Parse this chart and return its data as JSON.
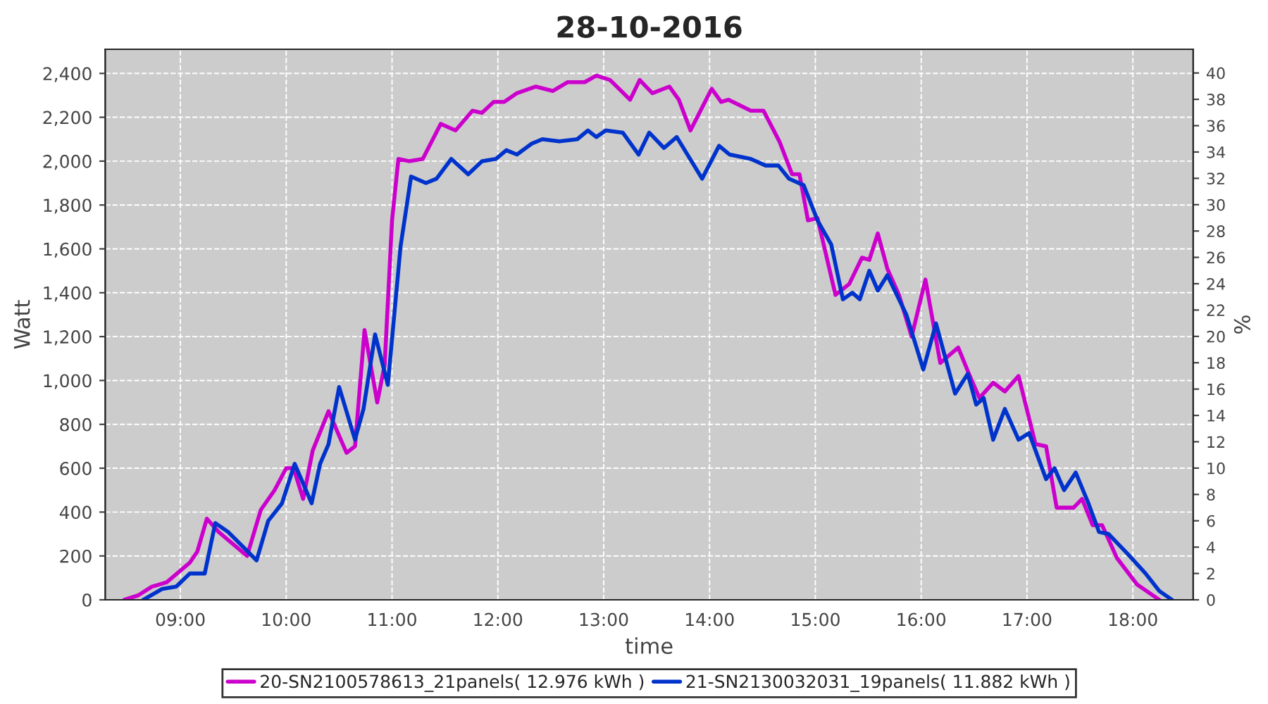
{
  "chart_data": {
    "type": "line",
    "title": "28-10-2016",
    "xlabel": "time",
    "ylabel": "Watt",
    "y2label": "%",
    "xlim": [
      8.29,
      18.57
    ],
    "xticks": [
      {
        "value": 9,
        "label": "09:00"
      },
      {
        "value": 10,
        "label": "10:00"
      },
      {
        "value": 11,
        "label": "11:00"
      },
      {
        "value": 12,
        "label": "12:00"
      },
      {
        "value": 13,
        "label": "13:00"
      },
      {
        "value": 14,
        "label": "14:00"
      },
      {
        "value": 15,
        "label": "15:00"
      },
      {
        "value": 16,
        "label": "16:00"
      },
      {
        "value": 17,
        "label": "17:00"
      },
      {
        "value": 18,
        "label": "18:00"
      }
    ],
    "ylim": [
      0,
      2510
    ],
    "yticks": [
      0,
      200,
      400,
      600,
      800,
      {
        "value": 1000,
        "label": "1,000"
      },
      {
        "value": 1200,
        "label": "1,200"
      },
      {
        "value": 1400,
        "label": "1,400"
      },
      {
        "value": 1600,
        "label": "1,600"
      },
      {
        "value": 1800,
        "label": "1,800"
      },
      {
        "value": 2000,
        "label": "2,000"
      },
      {
        "value": 2200,
        "label": "2,200"
      },
      {
        "value": 2400,
        "label": "2,400"
      }
    ],
    "y2lim": [
      0,
      41.8
    ],
    "y2ticks": [
      0,
      2,
      4,
      6,
      8,
      10,
      12,
      14,
      16,
      18,
      20,
      22,
      24,
      26,
      28,
      30,
      32,
      34,
      36,
      38,
      40
    ],
    "grid": true,
    "legend": "bottom",
    "line_style": "solid",
    "series": [
      {
        "name": "20-SN2100578613_21panels( 12.976 kWh )",
        "color": "#cc00cc",
        "x": [
          8.47,
          8.6,
          8.73,
          8.87,
          9.09,
          9.16,
          9.25,
          9.36,
          9.63,
          9.76,
          9.89,
          10.0,
          10.07,
          10.16,
          10.25,
          10.4,
          10.57,
          10.65,
          10.74,
          10.86,
          10.93,
          11.0,
          11.06,
          11.16,
          11.29,
          11.46,
          11.6,
          11.76,
          11.85,
          11.96,
          12.06,
          12.18,
          12.36,
          12.52,
          12.66,
          12.82,
          12.93,
          13.06,
          13.25,
          13.34,
          13.46,
          13.62,
          13.71,
          13.82,
          14.02,
          14.11,
          14.18,
          14.39,
          14.51,
          14.66,
          14.78,
          14.85,
          14.93,
          15.02,
          15.19,
          15.32,
          15.44,
          15.51,
          15.59,
          15.68,
          15.79,
          15.91,
          16.04,
          16.18,
          16.35,
          16.46,
          16.55,
          16.68,
          16.79,
          16.92,
          17.08,
          17.18,
          17.28,
          17.44,
          17.52,
          17.62,
          17.71,
          17.85,
          18.04,
          18.25
        ],
        "values": [
          0,
          20,
          60,
          80,
          170,
          220,
          370,
          310,
          200,
          410,
          500,
          600,
          600,
          460,
          680,
          860,
          670,
          700,
          1230,
          900,
          1070,
          1730,
          2010,
          2000,
          2010,
          2170,
          2140,
          2230,
          2220,
          2270,
          2270,
          2310,
          2340,
          2320,
          2360,
          2360,
          2390,
          2370,
          2280,
          2370,
          2310,
          2340,
          2280,
          2140,
          2330,
          2270,
          2280,
          2230,
          2230,
          2090,
          1940,
          1940,
          1730,
          1740,
          1390,
          1440,
          1560,
          1550,
          1670,
          1510,
          1390,
          1200,
          1460,
          1080,
          1150,
          1020,
          920,
          990,
          950,
          1020,
          710,
          700,
          420,
          420,
          460,
          340,
          340,
          190,
          70,
          0
        ]
      },
      {
        "name": "21-SN2130032031_19panels( 11.882 kWh )",
        "color": "#0033cc",
        "x": [
          8.65,
          8.83,
          8.96,
          9.09,
          9.23,
          9.33,
          9.45,
          9.72,
          9.83,
          9.96,
          10.08,
          10.16,
          10.24,
          10.32,
          10.4,
          10.5,
          10.65,
          10.73,
          10.84,
          10.96,
          11.08,
          11.18,
          11.32,
          11.42,
          11.56,
          11.72,
          11.85,
          11.98,
          12.08,
          12.18,
          12.32,
          12.42,
          12.58,
          12.75,
          12.85,
          12.93,
          13.02,
          13.18,
          13.33,
          13.43,
          13.57,
          13.69,
          13.93,
          14.09,
          14.19,
          14.39,
          14.53,
          14.65,
          14.75,
          14.89,
          15.02,
          15.15,
          15.26,
          15.35,
          15.42,
          15.51,
          15.59,
          15.68,
          15.86,
          16.02,
          16.14,
          16.32,
          16.44,
          16.52,
          16.59,
          16.68,
          16.79,
          16.92,
          17.02,
          17.18,
          17.26,
          17.35,
          17.46,
          17.58,
          17.68,
          17.77,
          17.95,
          18.12,
          18.25,
          18.37
        ],
        "values": [
          0,
          50,
          60,
          120,
          120,
          350,
          310,
          180,
          360,
          440,
          620,
          530,
          440,
          620,
          710,
          970,
          730,
          870,
          1210,
          980,
          1610,
          1930,
          1900,
          1920,
          2010,
          1940,
          2000,
          2010,
          2050,
          2030,
          2080,
          2100,
          2090,
          2100,
          2140,
          2110,
          2140,
          2130,
          2030,
          2130,
          2060,
          2110,
          1920,
          2070,
          2030,
          2010,
          1980,
          1980,
          1920,
          1890,
          1730,
          1620,
          1370,
          1400,
          1370,
          1500,
          1410,
          1480,
          1300,
          1050,
          1260,
          940,
          1030,
          890,
          920,
          730,
          870,
          730,
          760,
          550,
          600,
          500,
          580,
          440,
          310,
          300,
          210,
          120,
          40,
          0
        ]
      }
    ]
  }
}
